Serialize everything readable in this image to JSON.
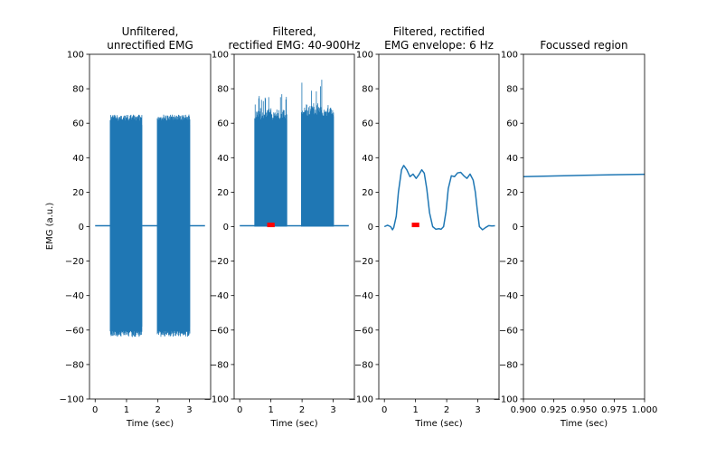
{
  "figure": {
    "ylabel": "EMG (a.u.)",
    "line_color": "#1f77b4",
    "marker_color": "#ff0000"
  },
  "chart_data": [
    {
      "type": "line",
      "title_lines": [
        "Unfiltered,",
        "unrectified EMG"
      ],
      "xlabel": "Time (sec)",
      "ylabel": "EMG (a.u.)",
      "xlim": [
        -0.18,
        3.68
      ],
      "ylim": [
        -100,
        100
      ],
      "xticks": [
        0,
        1,
        2,
        3
      ],
      "xtick_labels": [
        "0",
        "1",
        "2",
        "3"
      ],
      "yticks": [
        100,
        80,
        60,
        40,
        20,
        0,
        -20,
        -40,
        -60,
        -80,
        -100
      ],
      "ytick_labels": [
        "100",
        "80",
        "60",
        "40",
        "20",
        "0",
        "−20",
        "−40",
        "−60",
        "−80",
        "−100"
      ],
      "series": [
        {
          "style": "oscillating-band",
          "baseline": 0.5,
          "x_range": [
            0,
            3.5
          ],
          "bursts": [
            {
              "start": 0.48,
              "end": 1.5,
              "max": 65,
              "min": -64
            },
            {
              "start": 1.98,
              "end": 3.02,
              "max": 65,
              "min": -64
            }
          ]
        }
      ],
      "markers": []
    },
    {
      "type": "line",
      "title_lines": [
        "Filtered,",
        "rectified EMG: 40-900Hz"
      ],
      "xlabel": "Time (sec)",
      "ylabel": "",
      "xlim": [
        -0.18,
        3.68
      ],
      "ylim": [
        -100,
        100
      ],
      "xticks": [
        0,
        1,
        2,
        3
      ],
      "xtick_labels": [
        "0",
        "1",
        "2",
        "3"
      ],
      "yticks": [
        100,
        80,
        60,
        40,
        20,
        0,
        -20,
        -40,
        -60,
        -80,
        -100
      ],
      "ytick_labels": [
        "100",
        "80",
        "60",
        "40",
        "20",
        "0",
        "−20",
        "−40",
        "−60",
        "−80",
        "−100"
      ],
      "series": [
        {
          "style": "rectified-band",
          "baseline": 0.5,
          "x_range": [
            0,
            3.5
          ],
          "bursts": [
            {
              "start": 0.48,
              "end": 1.52,
              "max": 80,
              "min": 0,
              "dense_top": 68
            },
            {
              "start": 1.98,
              "end": 3.02,
              "max": 86,
              "min": 0,
              "dense_top": 70
            }
          ]
        }
      ],
      "markers": [
        {
          "x0": 0.88,
          "x1": 1.12,
          "y": 1.0
        }
      ]
    },
    {
      "type": "line",
      "title_lines": [
        "Filtered, rectified",
        "EMG envelope: 6 Hz"
      ],
      "xlabel": "Time (sec)",
      "ylabel": "",
      "xlim": [
        -0.18,
        3.68
      ],
      "ylim": [
        -100,
        100
      ],
      "xticks": [
        0,
        1,
        2,
        3
      ],
      "xtick_labels": [
        "0",
        "1",
        "2",
        "3"
      ],
      "yticks": [
        100,
        80,
        60,
        40,
        20,
        0,
        -20,
        -40,
        -60,
        -80,
        -100
      ],
      "ytick_labels": [
        "100",
        "80",
        "60",
        "40",
        "20",
        "0",
        "−20",
        "−40",
        "−60",
        "−80",
        "−100"
      ],
      "series": [
        {
          "style": "line",
          "x": [
            0,
            0.1,
            0.2,
            0.26,
            0.3,
            0.38,
            0.45,
            0.55,
            0.62,
            0.72,
            0.82,
            0.92,
            1.02,
            1.12,
            1.2,
            1.28,
            1.36,
            1.45,
            1.55,
            1.65,
            1.75,
            1.82,
            1.9,
            1.98,
            2.05,
            2.15,
            2.25,
            2.35,
            2.45,
            2.55,
            2.65,
            2.75,
            2.85,
            2.92,
            2.98,
            3.05,
            3.15,
            3.25,
            3.35,
            3.45,
            3.55
          ],
          "y": [
            0,
            0.8,
            0,
            -1.8,
            -0.5,
            6,
            20,
            33,
            35.5,
            33,
            29,
            30.5,
            28,
            30.5,
            33,
            31,
            22,
            8,
            0,
            -1.5,
            -1.2,
            -1.5,
            0,
            9,
            22,
            29.5,
            29,
            31.2,
            31.5,
            29.5,
            28,
            30.5,
            27,
            20,
            10,
            0,
            -1.8,
            -0.5,
            0.6,
            0.4,
            0.5
          ]
        }
      ],
      "markers": [
        {
          "x0": 0.88,
          "x1": 1.12,
          "y": 1.0
        }
      ]
    },
    {
      "type": "line",
      "title_lines": [
        "Focussed region"
      ],
      "xlabel": "Time (sec)",
      "ylabel": "",
      "xlim": [
        0.9,
        1.0
      ],
      "ylim": [
        -100,
        100
      ],
      "xticks": [
        0.9,
        0.925,
        0.95,
        0.975,
        1.0
      ],
      "xtick_labels": [
        "0.900",
        "0.925",
        "0.950",
        "0.975",
        "1.000"
      ],
      "yticks": [
        100,
        80,
        60,
        40,
        20,
        0,
        -20,
        -40,
        -60,
        -80,
        -100
      ],
      "ytick_labels": [
        "100",
        "80",
        "60",
        "40",
        "20",
        "0",
        "−20",
        "−40",
        "−60",
        "−80",
        "−100"
      ],
      "series": [
        {
          "style": "line",
          "x": [
            0.9,
            0.925,
            0.95,
            0.975,
            1.0
          ],
          "y": [
            29.0,
            29.4,
            29.8,
            30.1,
            30.4
          ]
        }
      ],
      "markers": []
    }
  ]
}
